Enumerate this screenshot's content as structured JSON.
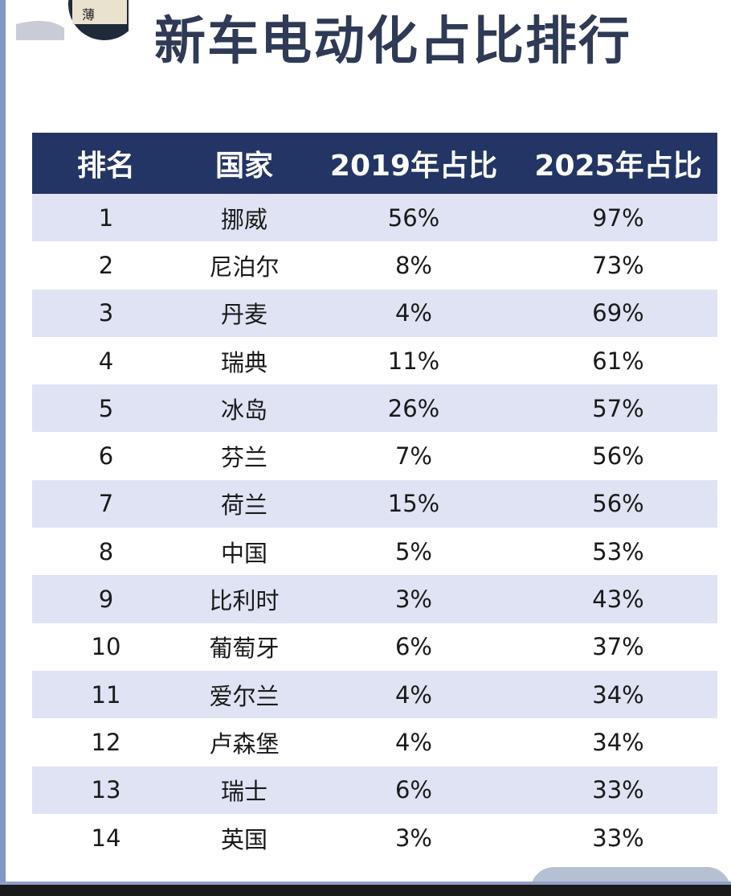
{
  "title": "新车电动化占比排行",
  "logo_text": "薄",
  "chart_data": {
    "type": "table",
    "title": "新车电动化占比排行",
    "columns": [
      "排名",
      "国家",
      "2019年占比",
      "2025年占比"
    ],
    "rows": [
      [
        "1",
        "挪威",
        "56%",
        "97%"
      ],
      [
        "2",
        "尼泊尔",
        "8%",
        "73%"
      ],
      [
        "3",
        "丹麦",
        "4%",
        "69%"
      ],
      [
        "4",
        "瑞典",
        "11%",
        "61%"
      ],
      [
        "5",
        "冰岛",
        "26%",
        "57%"
      ],
      [
        "6",
        "芬兰",
        "7%",
        "56%"
      ],
      [
        "7",
        "荷兰",
        "15%",
        "56%"
      ],
      [
        "8",
        "中国",
        "5%",
        "53%"
      ],
      [
        "9",
        "比利时",
        "3%",
        "43%"
      ],
      [
        "10",
        "葡萄牙",
        "6%",
        "37%"
      ],
      [
        "11",
        "爱尔兰",
        "4%",
        "34%"
      ],
      [
        "12",
        "卢森堡",
        "4%",
        "34%"
      ],
      [
        "13",
        "瑞士",
        "6%",
        "33%"
      ],
      [
        "14",
        "英国",
        "3%",
        "33%"
      ]
    ]
  },
  "colors": {
    "header_bg": "#233564",
    "title": "#2e3a56",
    "alt_row": "#dfe3f3"
  }
}
